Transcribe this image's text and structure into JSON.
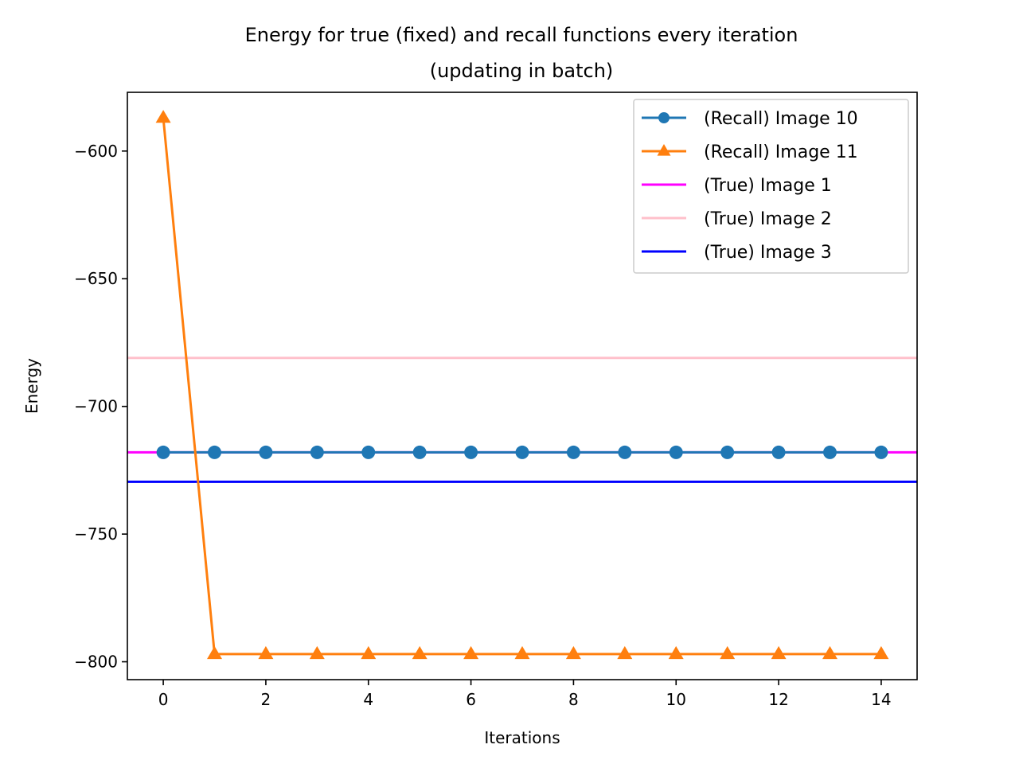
{
  "chart_data": {
    "type": "line",
    "title": "Energy for true (fixed) and recall functions every iteration",
    "subtitle": "(updating in batch)",
    "xlabel": "Iterations",
    "ylabel": "Energy",
    "xlim": [
      -0.7,
      14.7
    ],
    "ylim": [
      -807,
      -577
    ],
    "xticks": [
      0,
      2,
      4,
      6,
      8,
      10,
      12,
      14
    ],
    "yticks": [
      -600,
      -650,
      -700,
      -750,
      -800
    ],
    "xtick_labels": [
      "0",
      "2",
      "4",
      "6",
      "8",
      "10",
      "12",
      "14"
    ],
    "ytick_labels": [
      "−600",
      "−650",
      "−700",
      "−750",
      "−800"
    ],
    "grid": false,
    "legend_position": "top-right",
    "x": [
      0,
      1,
      2,
      3,
      4,
      5,
      6,
      7,
      8,
      9,
      10,
      11,
      12,
      13,
      14
    ],
    "series": [
      {
        "name": "(Recall) Image 10",
        "kind": "line",
        "marker": "circle",
        "color": "#1f77b4",
        "values": [
          -718,
          -718,
          -718,
          -718,
          -718,
          -718,
          -718,
          -718,
          -718,
          -718,
          -718,
          -718,
          -718,
          -718,
          -718
        ]
      },
      {
        "name": "(Recall) Image 11",
        "kind": "line",
        "marker": "triangle",
        "color": "#ff7f0e",
        "values": [
          -587,
          -797,
          -797,
          -797,
          -797,
          -797,
          -797,
          -797,
          -797,
          -797,
          -797,
          -797,
          -797,
          -797,
          -797
        ]
      },
      {
        "name": "(True) Image 1",
        "kind": "hline",
        "color": "#ff00ff",
        "value": -718
      },
      {
        "name": "(True) Image 2",
        "kind": "hline",
        "color": "#ffc0cb",
        "value": -681
      },
      {
        "name": "(True) Image 3",
        "kind": "hline",
        "color": "#0000ff",
        "value": -729.5
      }
    ]
  }
}
